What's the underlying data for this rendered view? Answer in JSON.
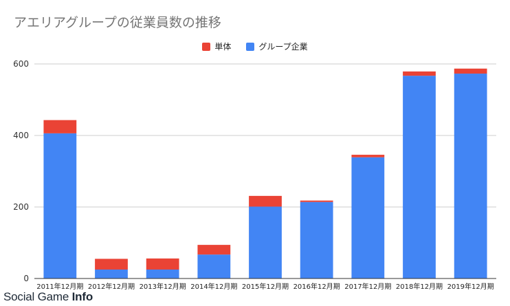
{
  "chart_data": {
    "type": "bar",
    "stacked": true,
    "title": "アエリアグループの従業員数の推移",
    "categories": [
      "2011年12月期",
      "2012年12月期",
      "2013年12月期",
      "2014年12月期",
      "2015年12月期",
      "2016年12月期",
      "2017年12月期",
      "2018年12月期",
      "2019年12月期"
    ],
    "series": [
      {
        "name": "グループ企業",
        "color": "#4285f4",
        "values": [
          406,
          25,
          25,
          67,
          201,
          214,
          339,
          567,
          573
        ]
      },
      {
        "name": "単体",
        "color": "#ea4335",
        "values": [
          37,
          30,
          31,
          27,
          30,
          4,
          7,
          12,
          14
        ]
      }
    ],
    "legend_order": [
      "単体",
      "グループ企業"
    ],
    "legend_position": "top-center",
    "yticks": [
      0,
      200,
      400,
      600
    ],
    "ylim": [
      0,
      625
    ],
    "grid": true,
    "xlabel": "",
    "ylabel": ""
  },
  "watermark": {
    "text_regular": "Social Game ",
    "text_bold": "Info"
  }
}
